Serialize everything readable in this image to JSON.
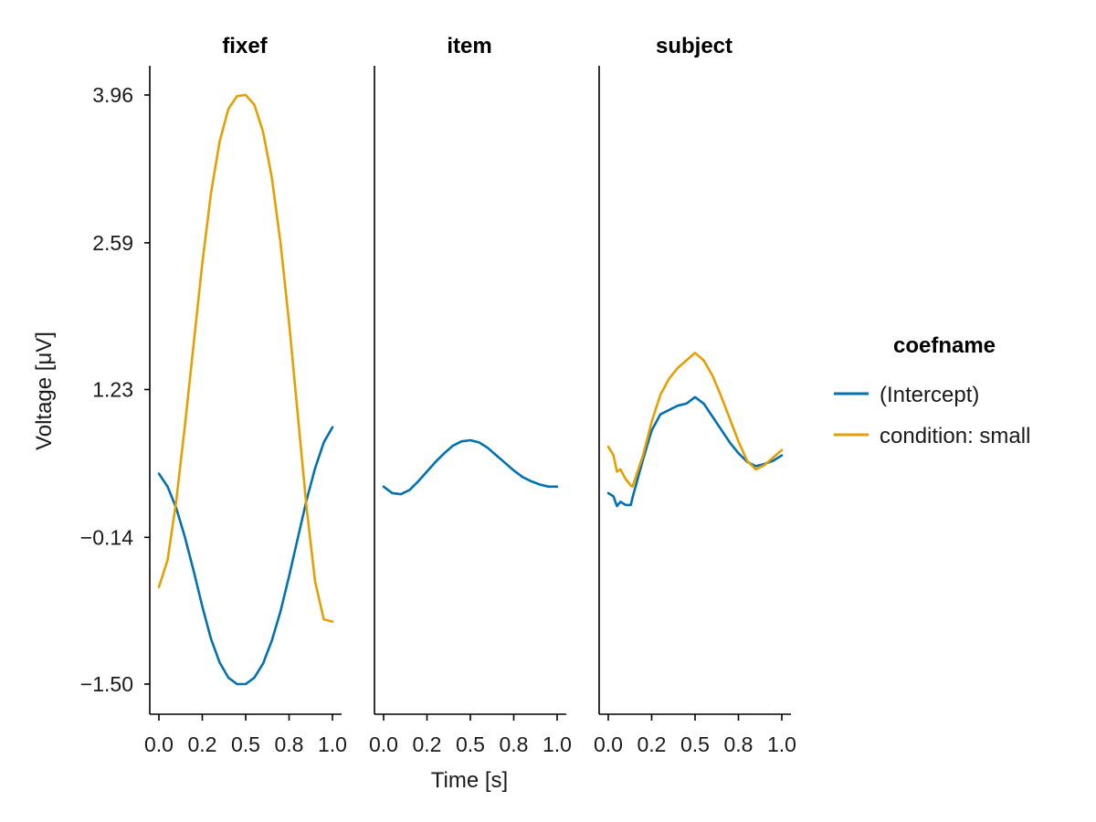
{
  "chart_data": {
    "type": "line",
    "xlabel": "Time [s]",
    "ylabel": "Voltage [μV]",
    "xlim": [
      0,
      1
    ],
    "ylim": [
      -1.5,
      3.96
    ],
    "x_ticks": [
      "0.0",
      "0.2",
      "0.5",
      "0.8",
      "1.0"
    ],
    "x_tick_values": [
      0.0,
      0.25,
      0.5,
      0.75,
      1.0
    ],
    "y_ticks": [
      "3.96",
      "2.59",
      "1.23",
      "−0.14",
      "−1.50"
    ],
    "y_tick_values": [
      3.96,
      2.59,
      1.23,
      -0.14,
      -1.5
    ],
    "grid": false,
    "legend_position": "right",
    "legend": {
      "title": "coefname",
      "entries": [
        {
          "label": "(Intercept)",
          "color": "#0072B2"
        },
        {
          "label": "condition: small",
          "color": "#E69F00"
        }
      ]
    },
    "panels": [
      {
        "title": "fixef",
        "series": [
          {
            "name": "(Intercept)",
            "color": "#0072B2",
            "x": [
              0,
              0.05,
              0.1,
              0.15,
              0.2,
              0.25,
              0.3,
              0.35,
              0.4,
              0.45,
              0.5,
              0.55,
              0.6,
              0.65,
              0.7,
              0.75,
              0.8,
              0.85,
              0.9,
              0.95,
              1.0
            ],
            "y": [
              0.45,
              0.33,
              0.13,
              -0.14,
              -0.45,
              -0.78,
              -1.08,
              -1.3,
              -1.44,
              -1.5,
              -1.5,
              -1.44,
              -1.31,
              -1.1,
              -0.83,
              -0.5,
              -0.15,
              0.2,
              0.5,
              0.74,
              0.88
            ]
          },
          {
            "name": "condition: small",
            "color": "#E69F00",
            "x": [
              0,
              0.05,
              0.1,
              0.15,
              0.2,
              0.25,
              0.3,
              0.35,
              0.4,
              0.45,
              0.5,
              0.55,
              0.6,
              0.65,
              0.7,
              0.75,
              0.8,
              0.85,
              0.9,
              0.95,
              1.0
            ],
            "y": [
              -0.6,
              -0.35,
              0.2,
              0.9,
              1.65,
              2.4,
              3.05,
              3.53,
              3.83,
              3.95,
              3.96,
              3.87,
              3.62,
              3.2,
              2.6,
              1.85,
              1.0,
              0.15,
              -0.55,
              -0.9,
              -0.92
            ]
          }
        ]
      },
      {
        "title": "item",
        "series": [
          {
            "name": "(Intercept)",
            "color": "#0072B2",
            "x": [
              0,
              0.05,
              0.1,
              0.15,
              0.2,
              0.25,
              0.3,
              0.35,
              0.4,
              0.45,
              0.5,
              0.55,
              0.6,
              0.65,
              0.7,
              0.75,
              0.8,
              0.85,
              0.9,
              0.95,
              1.0
            ],
            "y": [
              0.33,
              0.27,
              0.26,
              0.3,
              0.38,
              0.47,
              0.56,
              0.64,
              0.71,
              0.75,
              0.76,
              0.74,
              0.69,
              0.62,
              0.55,
              0.48,
              0.42,
              0.38,
              0.35,
              0.33,
              0.33
            ]
          }
        ]
      },
      {
        "title": "subject",
        "series": [
          {
            "name": "(Intercept)",
            "color": "#0072B2",
            "x": [
              0,
              0.03,
              0.05,
              0.07,
              0.1,
              0.13,
              0.14,
              0.2,
              0.25,
              0.3,
              0.35,
              0.4,
              0.45,
              0.5,
              0.55,
              0.6,
              0.65,
              0.7,
              0.75,
              0.8,
              0.85,
              0.9,
              0.95,
              1.0
            ],
            "y": [
              0.27,
              0.24,
              0.15,
              0.19,
              0.16,
              0.16,
              0.23,
              0.58,
              0.85,
              1.0,
              1.04,
              1.08,
              1.1,
              1.16,
              1.1,
              0.98,
              0.86,
              0.74,
              0.64,
              0.56,
              0.52,
              0.54,
              0.57,
              0.62
            ]
          },
          {
            "name": "condition: small",
            "color": "#E69F00",
            "x": [
              0,
              0.03,
              0.05,
              0.07,
              0.1,
              0.13,
              0.14,
              0.2,
              0.25,
              0.3,
              0.35,
              0.4,
              0.45,
              0.5,
              0.55,
              0.6,
              0.65,
              0.7,
              0.75,
              0.8,
              0.85,
              0.9,
              0.95,
              1.0
            ],
            "y": [
              0.7,
              0.62,
              0.47,
              0.49,
              0.4,
              0.34,
              0.33,
              0.62,
              0.93,
              1.18,
              1.33,
              1.43,
              1.5,
              1.57,
              1.5,
              1.36,
              1.17,
              0.96,
              0.75,
              0.57,
              0.49,
              0.53,
              0.6,
              0.67
            ]
          }
        ]
      }
    ]
  }
}
